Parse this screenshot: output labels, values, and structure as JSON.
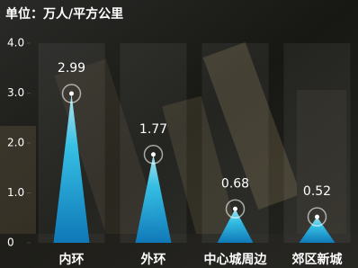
{
  "chart_data": {
    "type": "spike",
    "title": "单位：万人/平方公里",
    "categories": [
      "内环",
      "外环",
      "中心城周边",
      "郊区新城"
    ],
    "values": [
      2.99,
      1.77,
      0.68,
      0.52
    ],
    "color": "#29c6f0",
    "ylim": [
      0,
      4
    ],
    "yticks": [
      0,
      {
        "value": 1,
        "label": "1.0"
      },
      {
        "value": 2,
        "label": "2.0"
      },
      {
        "value": 3,
        "label": "3.0"
      },
      {
        "value": 4,
        "label": "4.0"
      }
    ]
  }
}
